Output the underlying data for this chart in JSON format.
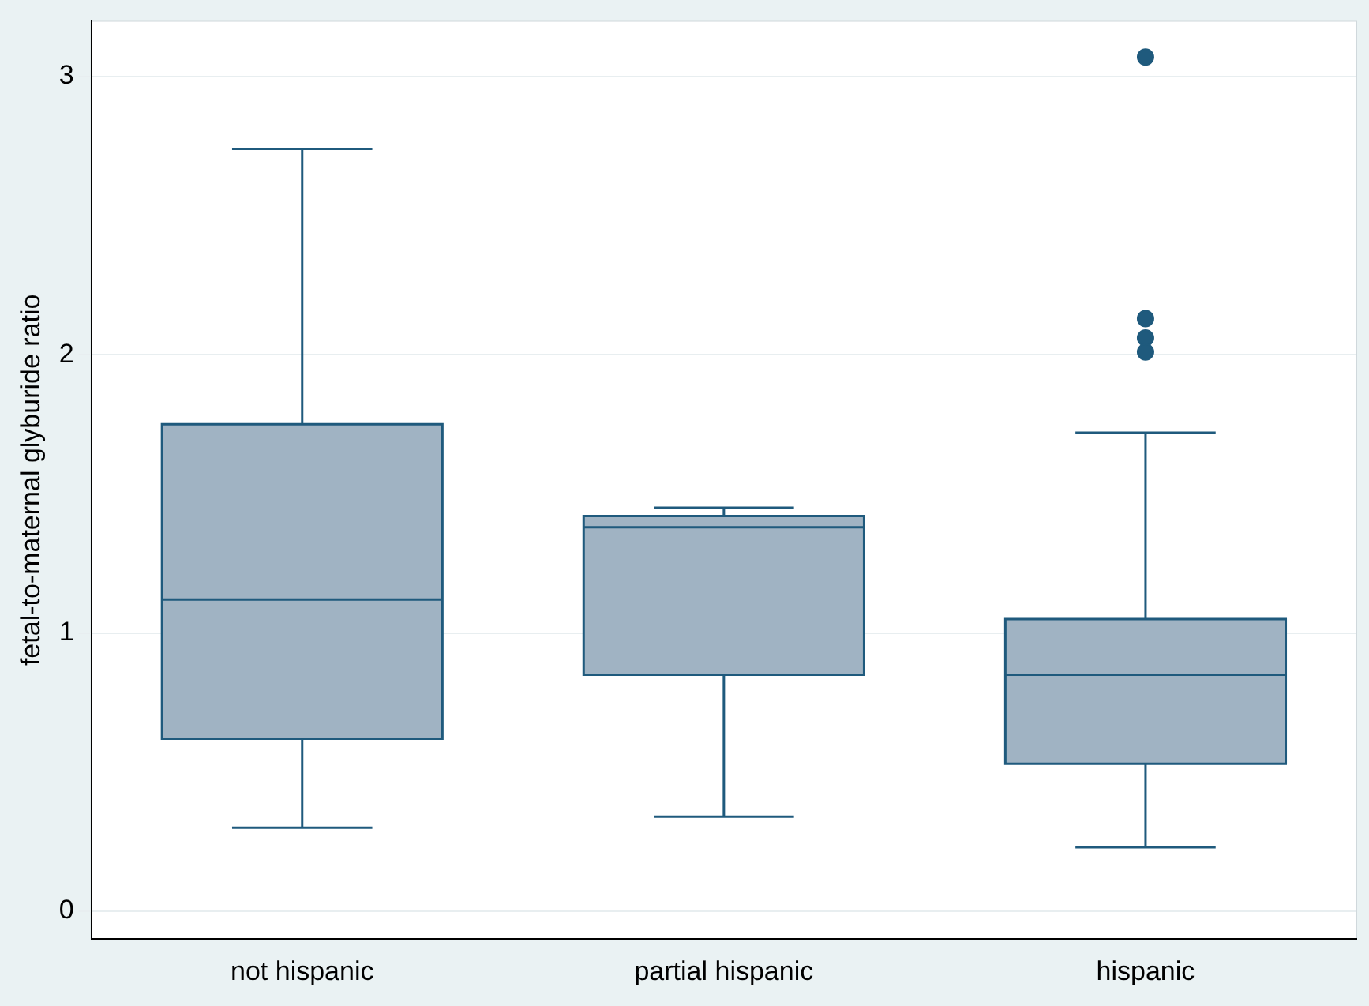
{
  "chart_data": {
    "type": "box",
    "ylabel": "fetal-to-maternal glyburide ratio",
    "categories": [
      "not hispanic",
      "partial hispanic",
      "hispanic"
    ],
    "boxes": [
      {
        "low": 0.3,
        "q1": 0.62,
        "median": 1.12,
        "q3": 1.75,
        "high": 2.74
      },
      {
        "low": 0.34,
        "q1": 0.85,
        "median": 1.38,
        "q3": 1.42,
        "high": 1.45
      },
      {
        "low": 0.23,
        "q1": 0.53,
        "median": 0.85,
        "q3": 1.05,
        "high": 1.72,
        "outliers": [
          3.07,
          2.13,
          2.06,
          2.01
        ]
      }
    ],
    "color": "#a0b3c3",
    "ylim": [
      -0.1,
      3.2
    ],
    "yticks": [
      0,
      1,
      2,
      3
    ],
    "grid": "y",
    "legend": false
  }
}
